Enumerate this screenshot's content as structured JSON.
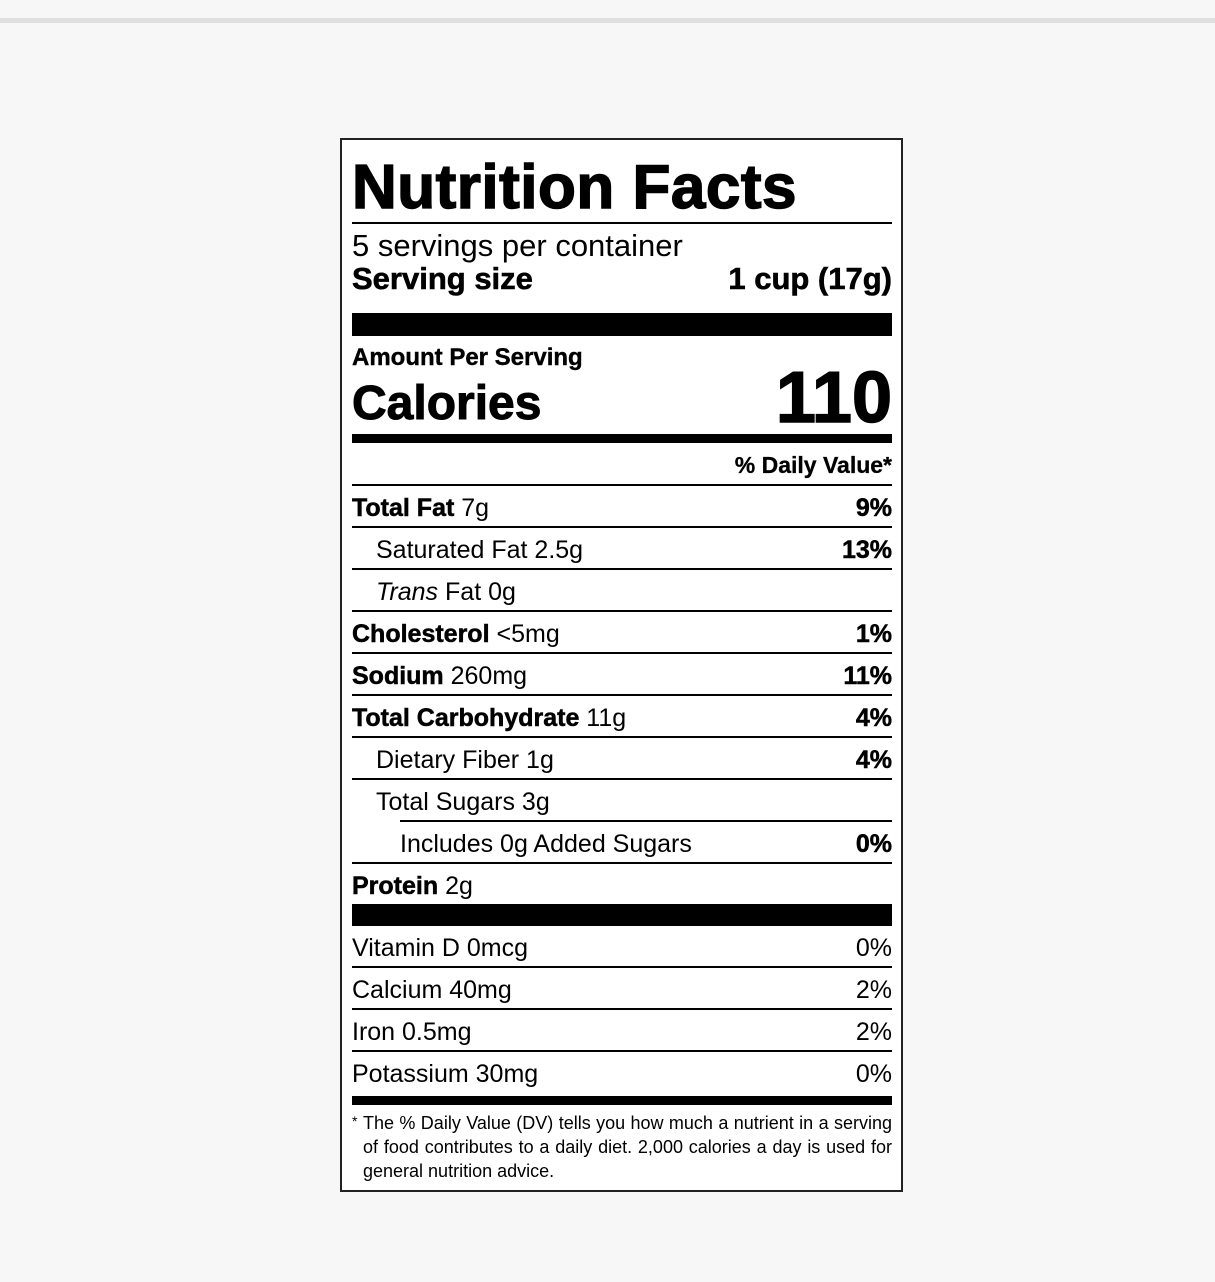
{
  "title": "Nutrition Facts",
  "servings_per_container": "5 servings per container",
  "serving_size": {
    "label": "Serving size",
    "value": "1 cup (17g)"
  },
  "amount_per_serving": "Amount Per Serving",
  "calories": {
    "label": "Calories",
    "value": "110"
  },
  "daily_value_header": "% Daily Value*",
  "nutrients": [
    {
      "name": "Total Fat",
      "amount": "7g",
      "dv": "9%"
    },
    {
      "name": "Saturated Fat 2.5g",
      "dv": "13%"
    },
    {
      "name_italic": "Trans",
      "name": "Fat 0g",
      "dv": ""
    },
    {
      "name": "Cholesterol",
      "amount": "<5mg",
      "dv": "1%"
    },
    {
      "name": "Sodium",
      "amount": "260mg",
      "dv": "11%"
    },
    {
      "name": "Total Carbohydrate",
      "amount": "11g",
      "dv": "4%"
    },
    {
      "name": "Dietary Fiber 1g",
      "dv": "4%"
    },
    {
      "name": "Total Sugars 3g",
      "dv": ""
    },
    {
      "name": "Includes 0g Added Sugars",
      "dv": "0%"
    },
    {
      "name": "Protein",
      "amount": "2g",
      "dv": ""
    }
  ],
  "vitamins": [
    {
      "name": "Vitamin D 0mcg",
      "dv": "0%"
    },
    {
      "name": "Calcium 40mg",
      "dv": "2%"
    },
    {
      "name": "Iron 0.5mg",
      "dv": "2%"
    },
    {
      "name": "Potassium 30mg",
      "dv": "0%"
    }
  ],
  "footnote": {
    "asterisk": "*",
    "text": "The % Daily Value (DV) tells you how much a nutrient in a serving of food contributes to a daily diet. 2,000 calories a day is used for general nutrition advice."
  }
}
